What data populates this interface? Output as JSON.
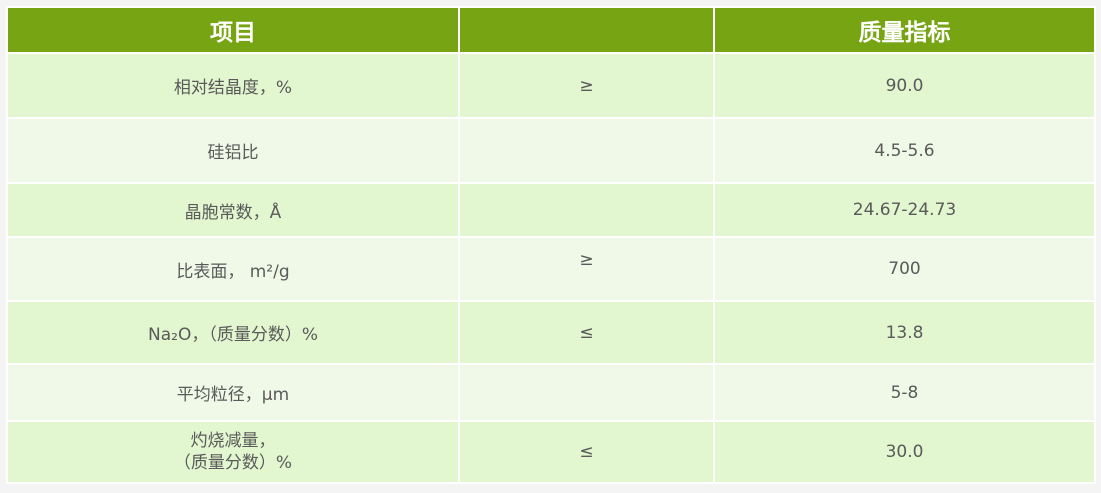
{
  "colors": {
    "header_bg": "#76a413",
    "row_odd": "#e2f6cf",
    "row_even": "#f0f9e8",
    "text": "#5a5a5a"
  },
  "table": {
    "headers": [
      "项目",
      "",
      "质量指标"
    ],
    "rows": [
      {
        "item": "相对结晶度，%",
        "symbol": "≥",
        "value": "90.0"
      },
      {
        "item": "硅铝比",
        "symbol": "",
        "value": "4.5-5.6"
      },
      {
        "item": "晶胞常数，Å",
        "symbol": "",
        "value": "24.67-24.73"
      },
      {
        "item": "比表面， m²/g",
        "symbol": "≥",
        "value": "700"
      },
      {
        "item": "Na₂O，（质量分数）%",
        "symbol": "≤",
        "value": "13.8"
      },
      {
        "item": "平均粒径，μm",
        "symbol": "",
        "value": "5-8"
      },
      {
        "item": "灼烧减量，\n（质量分数）%",
        "symbol": "≤",
        "value": "30.0"
      }
    ]
  }
}
